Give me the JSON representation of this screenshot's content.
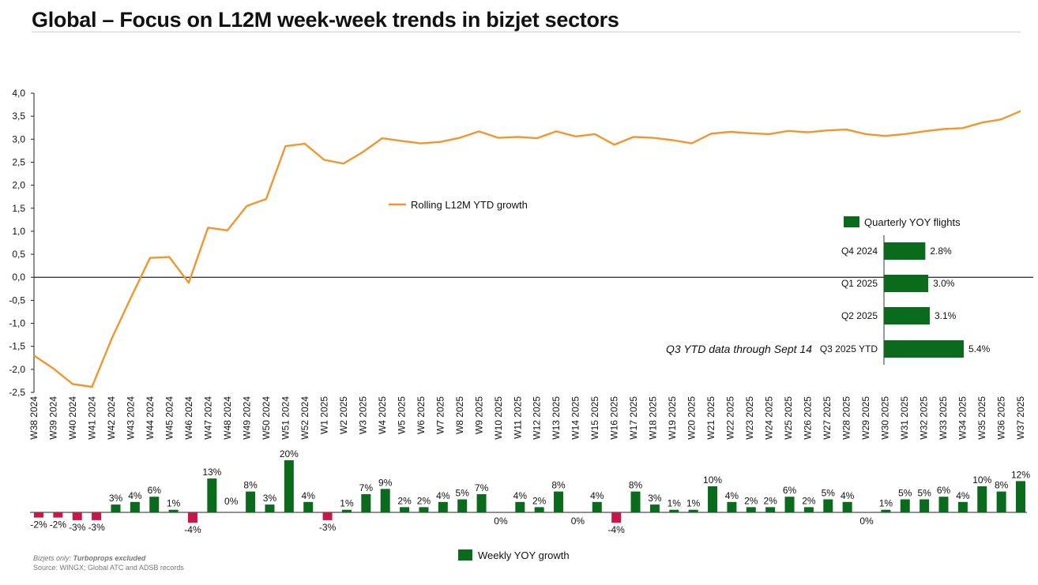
{
  "title": "Global – Focus on L12M week-week trends in bizjet sectors",
  "footnote": {
    "prefix": "Bizjets only: ",
    "emphasis": "Turboprops excluded",
    "source": "Source: WINGX; Global ATC and ADSB records"
  },
  "colors": {
    "line": "#f0962d",
    "positive": "#0b6b1c",
    "negative": "#c8174b",
    "quarterly": "#0b6b1c",
    "axis": "#222222"
  },
  "chart_data": [
    {
      "type": "line",
      "series": [
        {
          "name": "Rolling L12M YTD growth",
          "values": [
            -1.7,
            -1.98,
            -2.32,
            -2.38,
            -1.35,
            -0.45,
            0.42,
            0.44,
            -0.12,
            1.08,
            1.02,
            1.55,
            1.7,
            2.85,
            2.9,
            2.55,
            2.47,
            2.72,
            3.02,
            2.96,
            2.91,
            2.94,
            3.03,
            3.17,
            3.03,
            3.05,
            3.02,
            3.17,
            3.06,
            3.11,
            2.88,
            3.05,
            3.03,
            2.98,
            2.91,
            3.12,
            3.16,
            3.13,
            3.11,
            3.18,
            3.15,
            3.19,
            3.21,
            3.11,
            3.07,
            3.11,
            3.17,
            3.22,
            3.24,
            3.36,
            3.43,
            3.61
          ]
        }
      ],
      "categories": [
        "W38 2024",
        "W39 2024",
        "W40 2024",
        "W41 2024",
        "W42 2024",
        "W43 2024",
        "W44 2024",
        "W45 2024",
        "W46 2024",
        "W47 2024",
        "W48 2024",
        "W49 2024",
        "W50 2024",
        "W51 2024",
        "W52 2024",
        "W1 2025",
        "W2 2025",
        "W3 2025",
        "W4 2025",
        "W5 2025",
        "W6 2025",
        "W7 2025",
        "W8 2025",
        "W9 2025",
        "W10 2025",
        "W11 2025",
        "W12 2025",
        "W13 2025",
        "W14 2025",
        "W15 2025",
        "W16 2025",
        "W17 2025",
        "W18 2025",
        "W19 2025",
        "W20 2025",
        "W21 2025",
        "W22 2025",
        "W23 2025",
        "W24 2025",
        "W25 2025",
        "W26 2025",
        "W27 2025",
        "W28 2025",
        "W29 2025",
        "W30 2025",
        "W31 2025",
        "W32 2025",
        "W33 2025",
        "W34 2025",
        "W35 2025",
        "W36 2025",
        "W37 2025"
      ],
      "ylim": [
        -2.5,
        4.0
      ],
      "yticks": [
        "4,0",
        "3,5",
        "3,0",
        "2,5",
        "2,0",
        "1,5",
        "1,0",
        "0,5",
        "0,0",
        "-0,5",
        "-1,0",
        "-1,5",
        "-2,0",
        "-2,5"
      ],
      "legend": "center"
    },
    {
      "type": "bar",
      "orientation": "horizontal",
      "series": [
        {
          "name": "Quarterly YOY flights",
          "values": [
            2.8,
            3.0,
            3.1,
            5.4
          ]
        }
      ],
      "categories": [
        "Q4 2024",
        "Q1 2025",
        "Q2 2025",
        "Q3 2025 YTD"
      ],
      "data_labels": [
        "2.8%",
        "3.0%",
        "3.1%",
        "5.4%"
      ],
      "annotation": "Q3 YTD data through Sept 14",
      "legend": "top"
    },
    {
      "type": "bar",
      "series": [
        {
          "name": "Weekly YOY growth",
          "values": [
            -2,
            -2,
            -3,
            -3,
            3,
            4,
            6,
            1,
            -4,
            13,
            0,
            8,
            3,
            20,
            4,
            -3,
            1,
            7,
            9,
            2,
            2,
            4,
            5,
            7,
            0,
            4,
            2,
            8,
            0,
            4,
            -4,
            8,
            3,
            1,
            1,
            10,
            4,
            2,
            2,
            6,
            2,
            5,
            4,
            0,
            1,
            5,
            5,
            6,
            4,
            10,
            8,
            12
          ]
        }
      ],
      "data_labels": [
        "-2%",
        "-2%",
        "-3%",
        "-3%",
        "3%",
        "4%",
        "6%",
        "1%",
        "-4%",
        "13%",
        "0%",
        "8%",
        "3%",
        "20%",
        "4%",
        "-3%",
        "1%",
        "7%",
        "9%",
        "2%",
        "2%",
        "4%",
        "5%",
        "7%",
        "0%",
        "4%",
        "2%",
        "8%",
        "0%",
        "4%",
        "-4%",
        "8%",
        "3%",
        "1%",
        "1%",
        "10%",
        "4%",
        "2%",
        "2%",
        "6%",
        "2%",
        "5%",
        "4%",
        "0%",
        "1%",
        "5%",
        "5%",
        "6%",
        "4%",
        "10%",
        "8%",
        "12%"
      ],
      "legend": "bottom-center"
    }
  ]
}
